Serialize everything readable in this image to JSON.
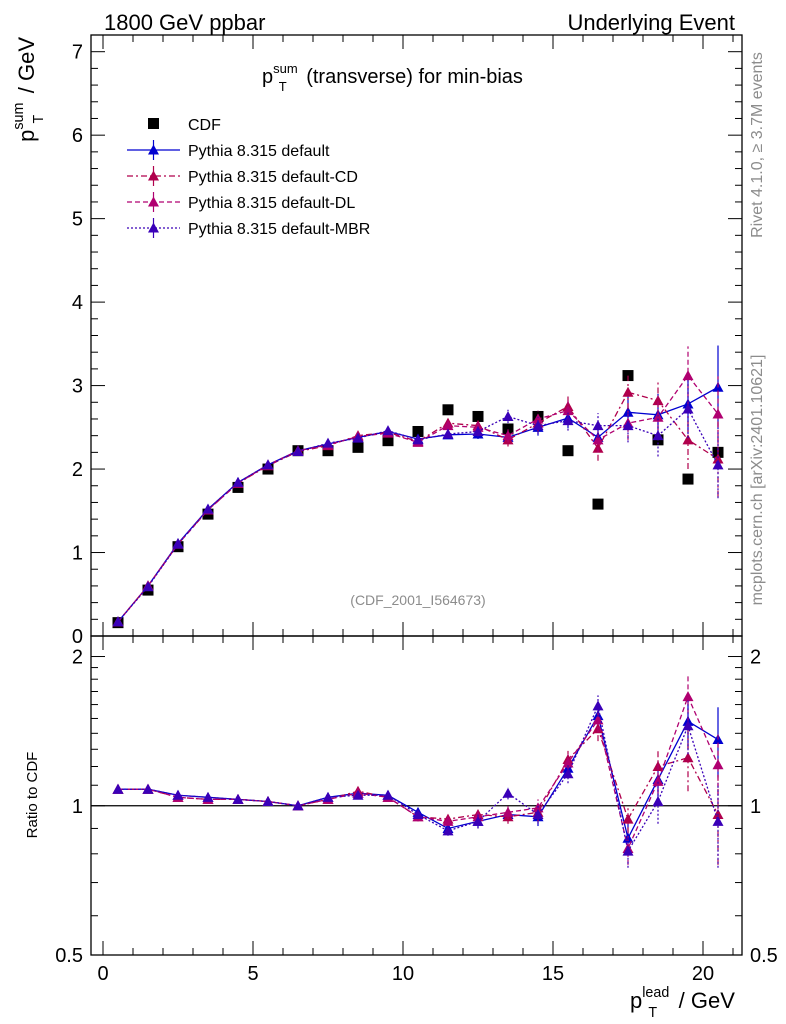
{
  "header": {
    "left": "1800 GeV ppbar",
    "right": "Underlying Event"
  },
  "side_labels": {
    "rivet": "Rivet 4.1.0, ≥ 3.7M events",
    "mcplots": "mcplots.cern.ch [arXiv:2401.10621]"
  },
  "colors": {
    "data": "#000000",
    "default": "#0000d0",
    "cd": "#b0004c",
    "dl": "#b00070",
    "mbr": "#3a00b8"
  },
  "chart_data": [
    {
      "type": "scatter",
      "panel": "main",
      "title": {
        "base": "p",
        "sup": "sum",
        "sub": "T",
        "rest": " (transverse) for min-bias"
      },
      "ylabel": {
        "base": "p",
        "sup": "sum",
        "sub": "T",
        "rest": " / GeV"
      },
      "analysis_tag": "(CDF_2001_I564673)",
      "xlim": [
        -0.4,
        21.3
      ],
      "ylim": [
        0,
        7.2
      ],
      "yticks": [
        0,
        1,
        2,
        3,
        4,
        5,
        6,
        7
      ],
      "legend_position": "top-left",
      "x": [
        0.5,
        1.5,
        2.5,
        3.5,
        4.5,
        5.5,
        6.5,
        7.5,
        8.5,
        9.5,
        10.5,
        11.5,
        12.5,
        13.5,
        14.5,
        15.5,
        16.5,
        17.5,
        18.5,
        19.5,
        20.5
      ],
      "series": [
        {
          "name": "CDF",
          "style": "data",
          "values": [
            0.16,
            0.55,
            1.07,
            1.46,
            1.78,
            2.0,
            2.22,
            2.22,
            2.26,
            2.34,
            2.45,
            2.71,
            2.63,
            2.48,
            2.63,
            2.22,
            1.58,
            3.12,
            2.35,
            1.88,
            2.2
          ]
        },
        {
          "name": "Pythia 8.315 default",
          "style": "default",
          "values": [
            0.17,
            0.6,
            1.11,
            1.52,
            1.84,
            2.05,
            2.22,
            2.3,
            2.38,
            2.45,
            2.36,
            2.41,
            2.42,
            2.38,
            2.5,
            2.61,
            2.38,
            2.68,
            2.65,
            2.78,
            2.98
          ],
          "errors": [
            0.01,
            0.01,
            0.01,
            0.01,
            0.01,
            0.01,
            0.02,
            0.02,
            0.03,
            0.03,
            0.04,
            0.05,
            0.06,
            0.08,
            0.1,
            0.12,
            0.15,
            0.2,
            0.25,
            0.35,
            0.5
          ]
        },
        {
          "name": "Pythia 8.315 default-CD",
          "style": "cd",
          "values": [
            0.17,
            0.6,
            1.1,
            1.51,
            1.83,
            2.04,
            2.21,
            2.28,
            2.4,
            2.44,
            2.33,
            2.55,
            2.52,
            2.35,
            2.55,
            2.75,
            2.25,
            2.92,
            2.82,
            2.35,
            2.12
          ],
          "errors": [
            0.01,
            0.01,
            0.01,
            0.01,
            0.01,
            0.01,
            0.02,
            0.02,
            0.03,
            0.03,
            0.04,
            0.05,
            0.06,
            0.08,
            0.1,
            0.12,
            0.15,
            0.2,
            0.25,
            0.35,
            0.45
          ]
        },
        {
          "name": "Pythia 8.315 default-DL",
          "style": "dl",
          "values": [
            0.17,
            0.6,
            1.1,
            1.51,
            1.83,
            2.05,
            2.22,
            2.29,
            2.39,
            2.43,
            2.32,
            2.52,
            2.5,
            2.4,
            2.6,
            2.7,
            2.35,
            2.55,
            2.62,
            3.12,
            2.66
          ],
          "errors": [
            0.01,
            0.01,
            0.01,
            0.01,
            0.01,
            0.01,
            0.02,
            0.02,
            0.03,
            0.03,
            0.04,
            0.05,
            0.06,
            0.08,
            0.1,
            0.12,
            0.15,
            0.2,
            0.25,
            0.35,
            0.45
          ]
        },
        {
          "name": "Pythia 8.315 default-MBR",
          "style": "mbr",
          "values": [
            0.17,
            0.59,
            1.1,
            1.52,
            1.84,
            2.05,
            2.21,
            2.31,
            2.37,
            2.46,
            2.35,
            2.42,
            2.45,
            2.63,
            2.52,
            2.58,
            2.52,
            2.52,
            2.4,
            2.72,
            2.05
          ],
          "errors": [
            0.01,
            0.01,
            0.01,
            0.01,
            0.01,
            0.01,
            0.02,
            0.02,
            0.03,
            0.03,
            0.04,
            0.05,
            0.06,
            0.08,
            0.1,
            0.12,
            0.15,
            0.2,
            0.25,
            0.35,
            0.4
          ]
        }
      ]
    },
    {
      "type": "scatter",
      "panel": "ratio",
      "ylabel": "Ratio to CDF",
      "xlabel": {
        "base": "p",
        "sup": "lead",
        "sub": "T",
        "rest": " / GeV"
      },
      "xlim": [
        -0.4,
        21.3
      ],
      "ylim": [
        0.5,
        2.2
      ],
      "yscale": "log",
      "yticks": [
        0.5,
        1,
        2
      ],
      "ytick_labels": [
        "0.5",
        "1",
        "2"
      ],
      "xticks": [
        0,
        5,
        10,
        15,
        20
      ],
      "xtick_labels": [
        "0",
        "5",
        "10",
        "15",
        "20"
      ],
      "reference_line": 1,
      "x": [
        0.5,
        1.5,
        2.5,
        3.5,
        4.5,
        5.5,
        6.5,
        7.5,
        8.5,
        9.5,
        10.5,
        11.5,
        12.5,
        13.5,
        14.5,
        15.5,
        16.5,
        17.5,
        18.5,
        19.5,
        20.5
      ],
      "series": [
        {
          "name": "Pythia 8.315 default",
          "style": "default",
          "values": [
            1.08,
            1.08,
            1.05,
            1.04,
            1.03,
            1.02,
            1.0,
            1.04,
            1.06,
            1.05,
            0.97,
            0.9,
            0.93,
            0.96,
            0.95,
            1.19,
            1.52,
            0.86,
            1.13,
            1.48,
            1.36
          ],
          "errors": [
            0.01,
            0.01,
            0.01,
            0.01,
            0.01,
            0.01,
            0.01,
            0.01,
            0.02,
            0.02,
            0.02,
            0.02,
            0.03,
            0.03,
            0.04,
            0.05,
            0.08,
            0.06,
            0.1,
            0.18,
            0.22
          ]
        },
        {
          "name": "Pythia 8.315 default-CD",
          "style": "cd",
          "values": [
            1.08,
            1.08,
            1.04,
            1.03,
            1.03,
            1.02,
            1.0,
            1.03,
            1.07,
            1.04,
            0.95,
            0.94,
            0.96,
            0.95,
            0.97,
            1.24,
            1.43,
            0.94,
            1.2,
            1.25,
            0.96
          ],
          "errors": [
            0.01,
            0.01,
            0.01,
            0.01,
            0.01,
            0.01,
            0.01,
            0.01,
            0.02,
            0.02,
            0.02,
            0.02,
            0.03,
            0.03,
            0.04,
            0.05,
            0.08,
            0.06,
            0.1,
            0.18,
            0.2
          ]
        },
        {
          "name": "Pythia 8.315 default-DL",
          "style": "dl",
          "values": [
            1.08,
            1.08,
            1.04,
            1.03,
            1.03,
            1.02,
            1.0,
            1.03,
            1.06,
            1.04,
            0.95,
            0.93,
            0.95,
            0.97,
            0.99,
            1.22,
            1.49,
            0.82,
            1.12,
            1.66,
            1.21
          ],
          "errors": [
            0.01,
            0.01,
            0.01,
            0.01,
            0.01,
            0.01,
            0.01,
            0.01,
            0.02,
            0.02,
            0.02,
            0.02,
            0.03,
            0.03,
            0.04,
            0.05,
            0.08,
            0.06,
            0.1,
            0.18,
            0.2
          ]
        },
        {
          "name": "Pythia 8.315 default-MBR",
          "style": "mbr",
          "values": [
            1.08,
            1.08,
            1.05,
            1.04,
            1.03,
            1.02,
            1.0,
            1.04,
            1.05,
            1.05,
            0.96,
            0.89,
            0.93,
            1.06,
            0.96,
            1.16,
            1.59,
            0.81,
            1.02,
            1.45,
            0.93
          ],
          "errors": [
            0.01,
            0.01,
            0.01,
            0.01,
            0.01,
            0.01,
            0.01,
            0.01,
            0.02,
            0.02,
            0.02,
            0.02,
            0.03,
            0.03,
            0.04,
            0.05,
            0.08,
            0.06,
            0.1,
            0.18,
            0.18
          ]
        }
      ]
    }
  ]
}
